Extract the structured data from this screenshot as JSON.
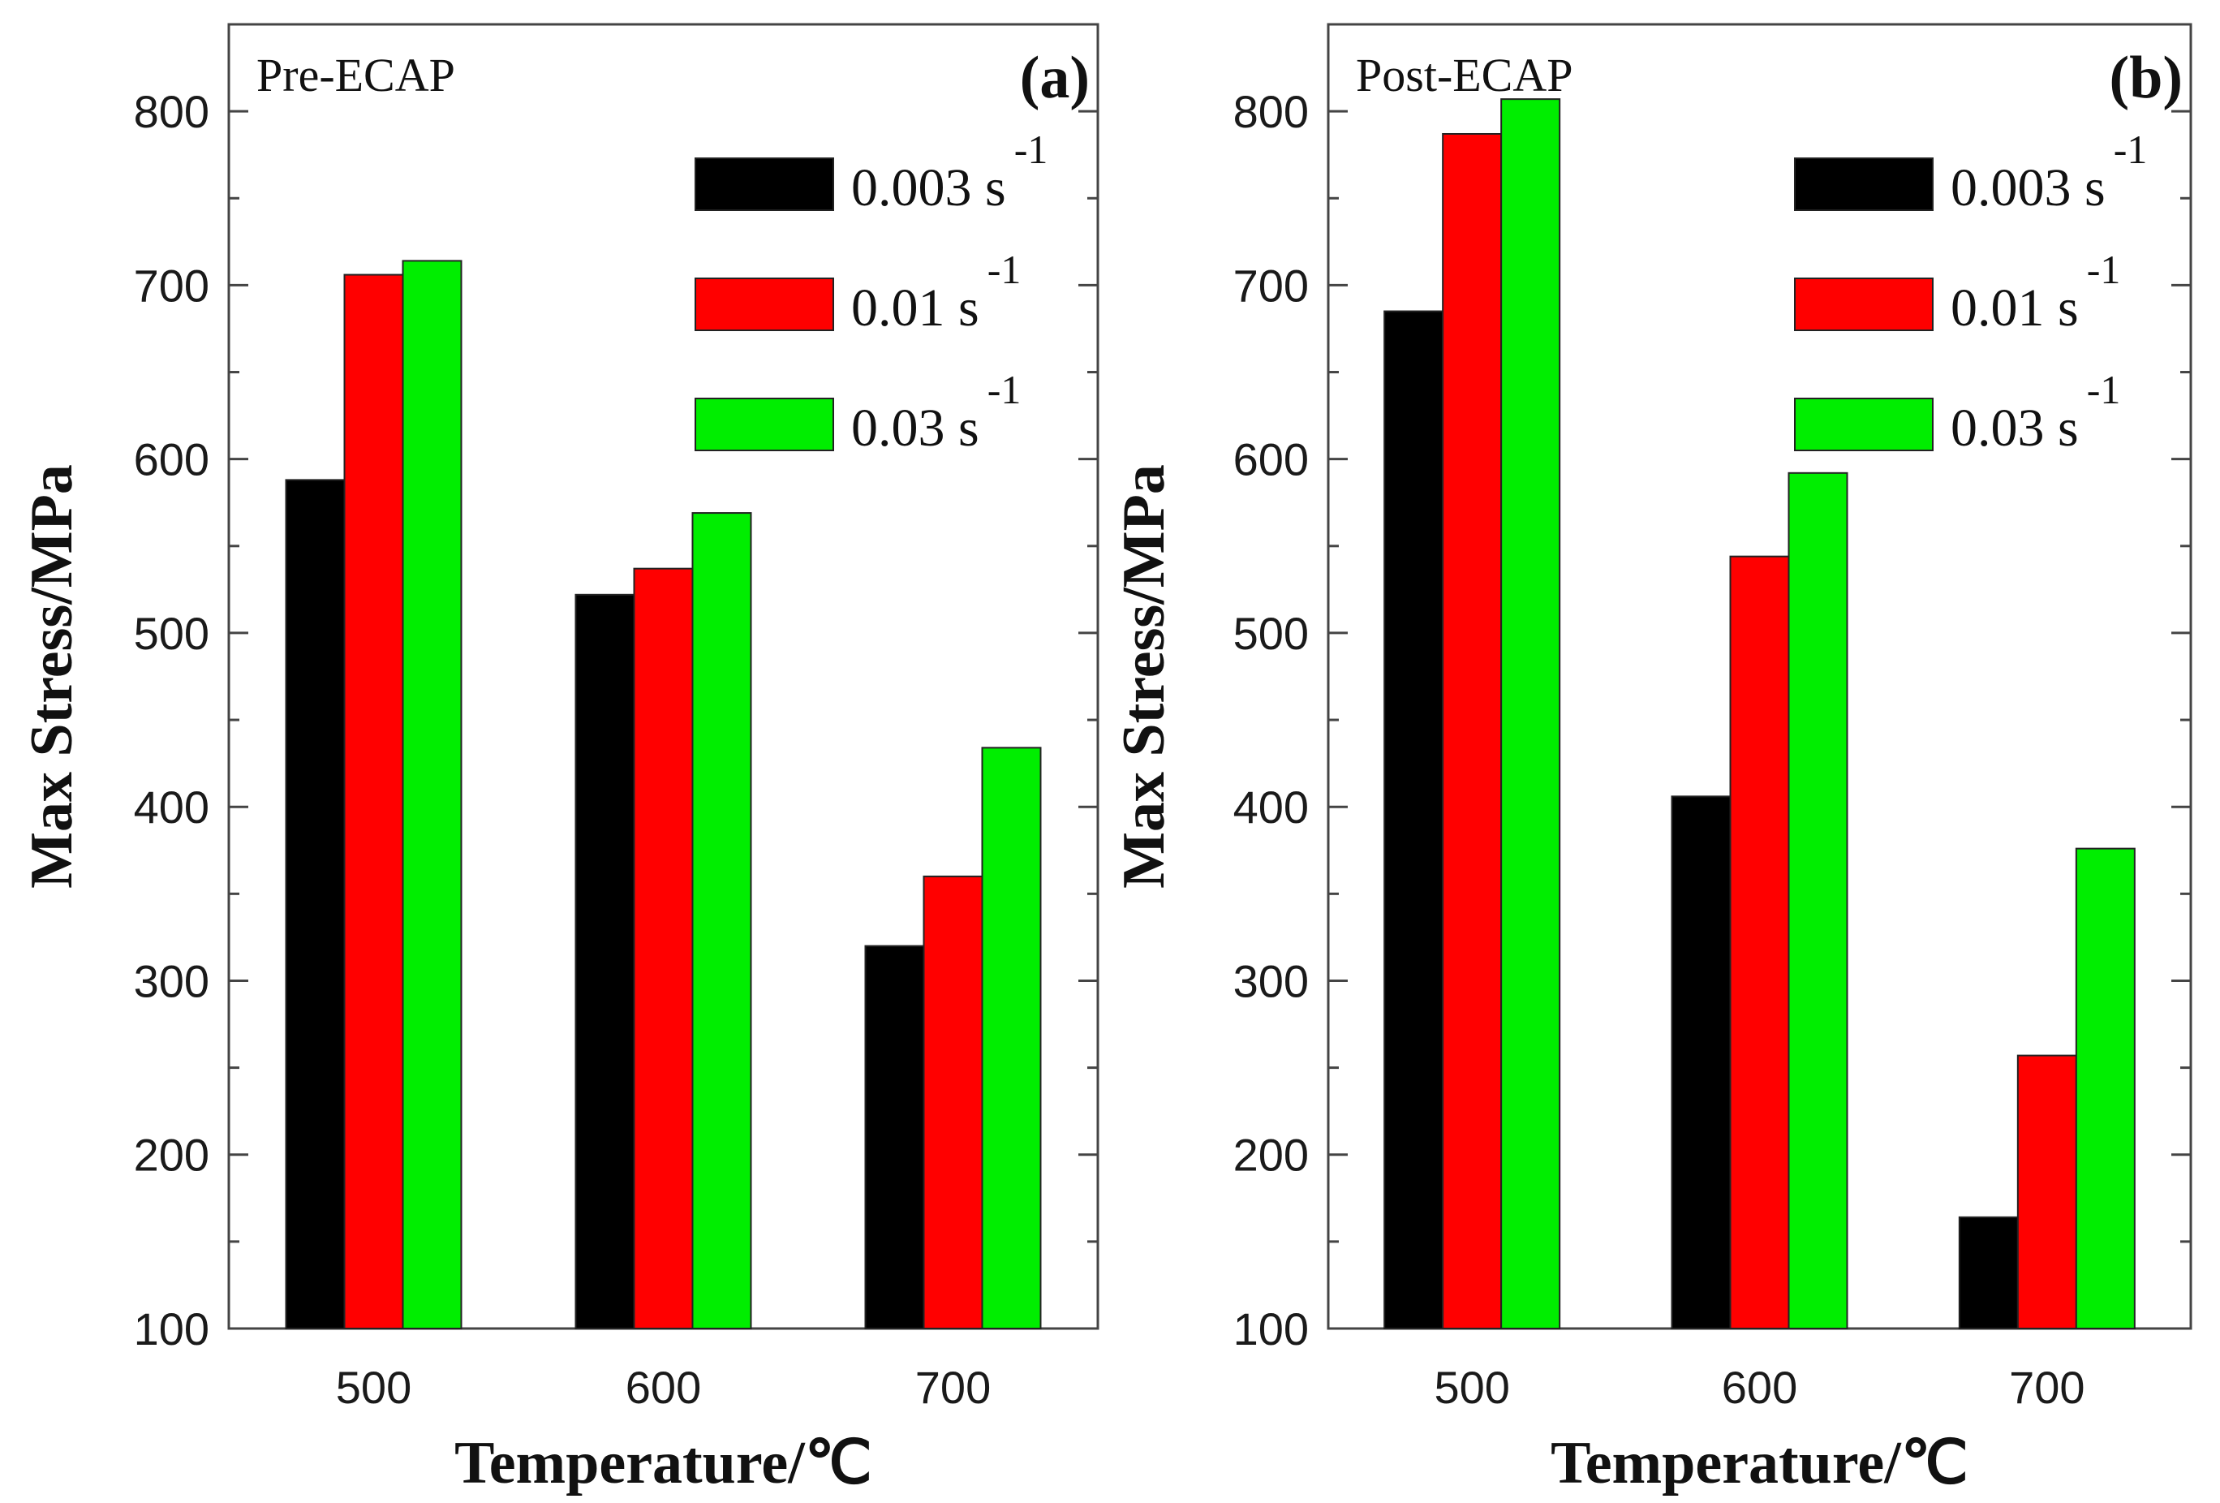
{
  "chart_data": [
    {
      "type": "bar",
      "panel_label": "(a)",
      "annotation": "Pre-ECAP",
      "xlabel": "Temperature/℃",
      "ylabel": "Max Stress/MPa",
      "categories": [
        "500",
        "600",
        "700"
      ],
      "ylim": [
        100,
        850
      ],
      "yticks": [
        100,
        200,
        300,
        400,
        500,
        600,
        700,
        800
      ],
      "legend_position": "top-right",
      "series": [
        {
          "name": "0.003 s",
          "superscript": "-1",
          "color": "#000000",
          "values": [
            588,
            522,
            320
          ]
        },
        {
          "name": "0.01 s",
          "superscript": "-1",
          "color": "#ff0000",
          "values": [
            706,
            537,
            360
          ]
        },
        {
          "name": "0.03 s",
          "superscript": "-1",
          "color": "#00ee00",
          "values": [
            714,
            569,
            434
          ]
        }
      ]
    },
    {
      "type": "bar",
      "panel_label": "(b)",
      "annotation": "Post-ECAP",
      "xlabel": "Temperature/℃",
      "ylabel": "Max Stress/MPa",
      "categories": [
        "500",
        "600",
        "700"
      ],
      "ylim": [
        100,
        850
      ],
      "yticks": [
        100,
        200,
        300,
        400,
        500,
        600,
        700,
        800
      ],
      "legend_position": "top-right",
      "series": [
        {
          "name": "0.003 s",
          "superscript": "-1",
          "color": "#000000",
          "values": [
            685,
            406,
            164
          ]
        },
        {
          "name": "0.01 s",
          "superscript": "-1",
          "color": "#ff0000",
          "values": [
            787,
            544,
            257
          ]
        },
        {
          "name": "0.03 s",
          "superscript": "-1",
          "color": "#00ee00",
          "values": [
            807,
            592,
            376
          ]
        }
      ]
    }
  ]
}
